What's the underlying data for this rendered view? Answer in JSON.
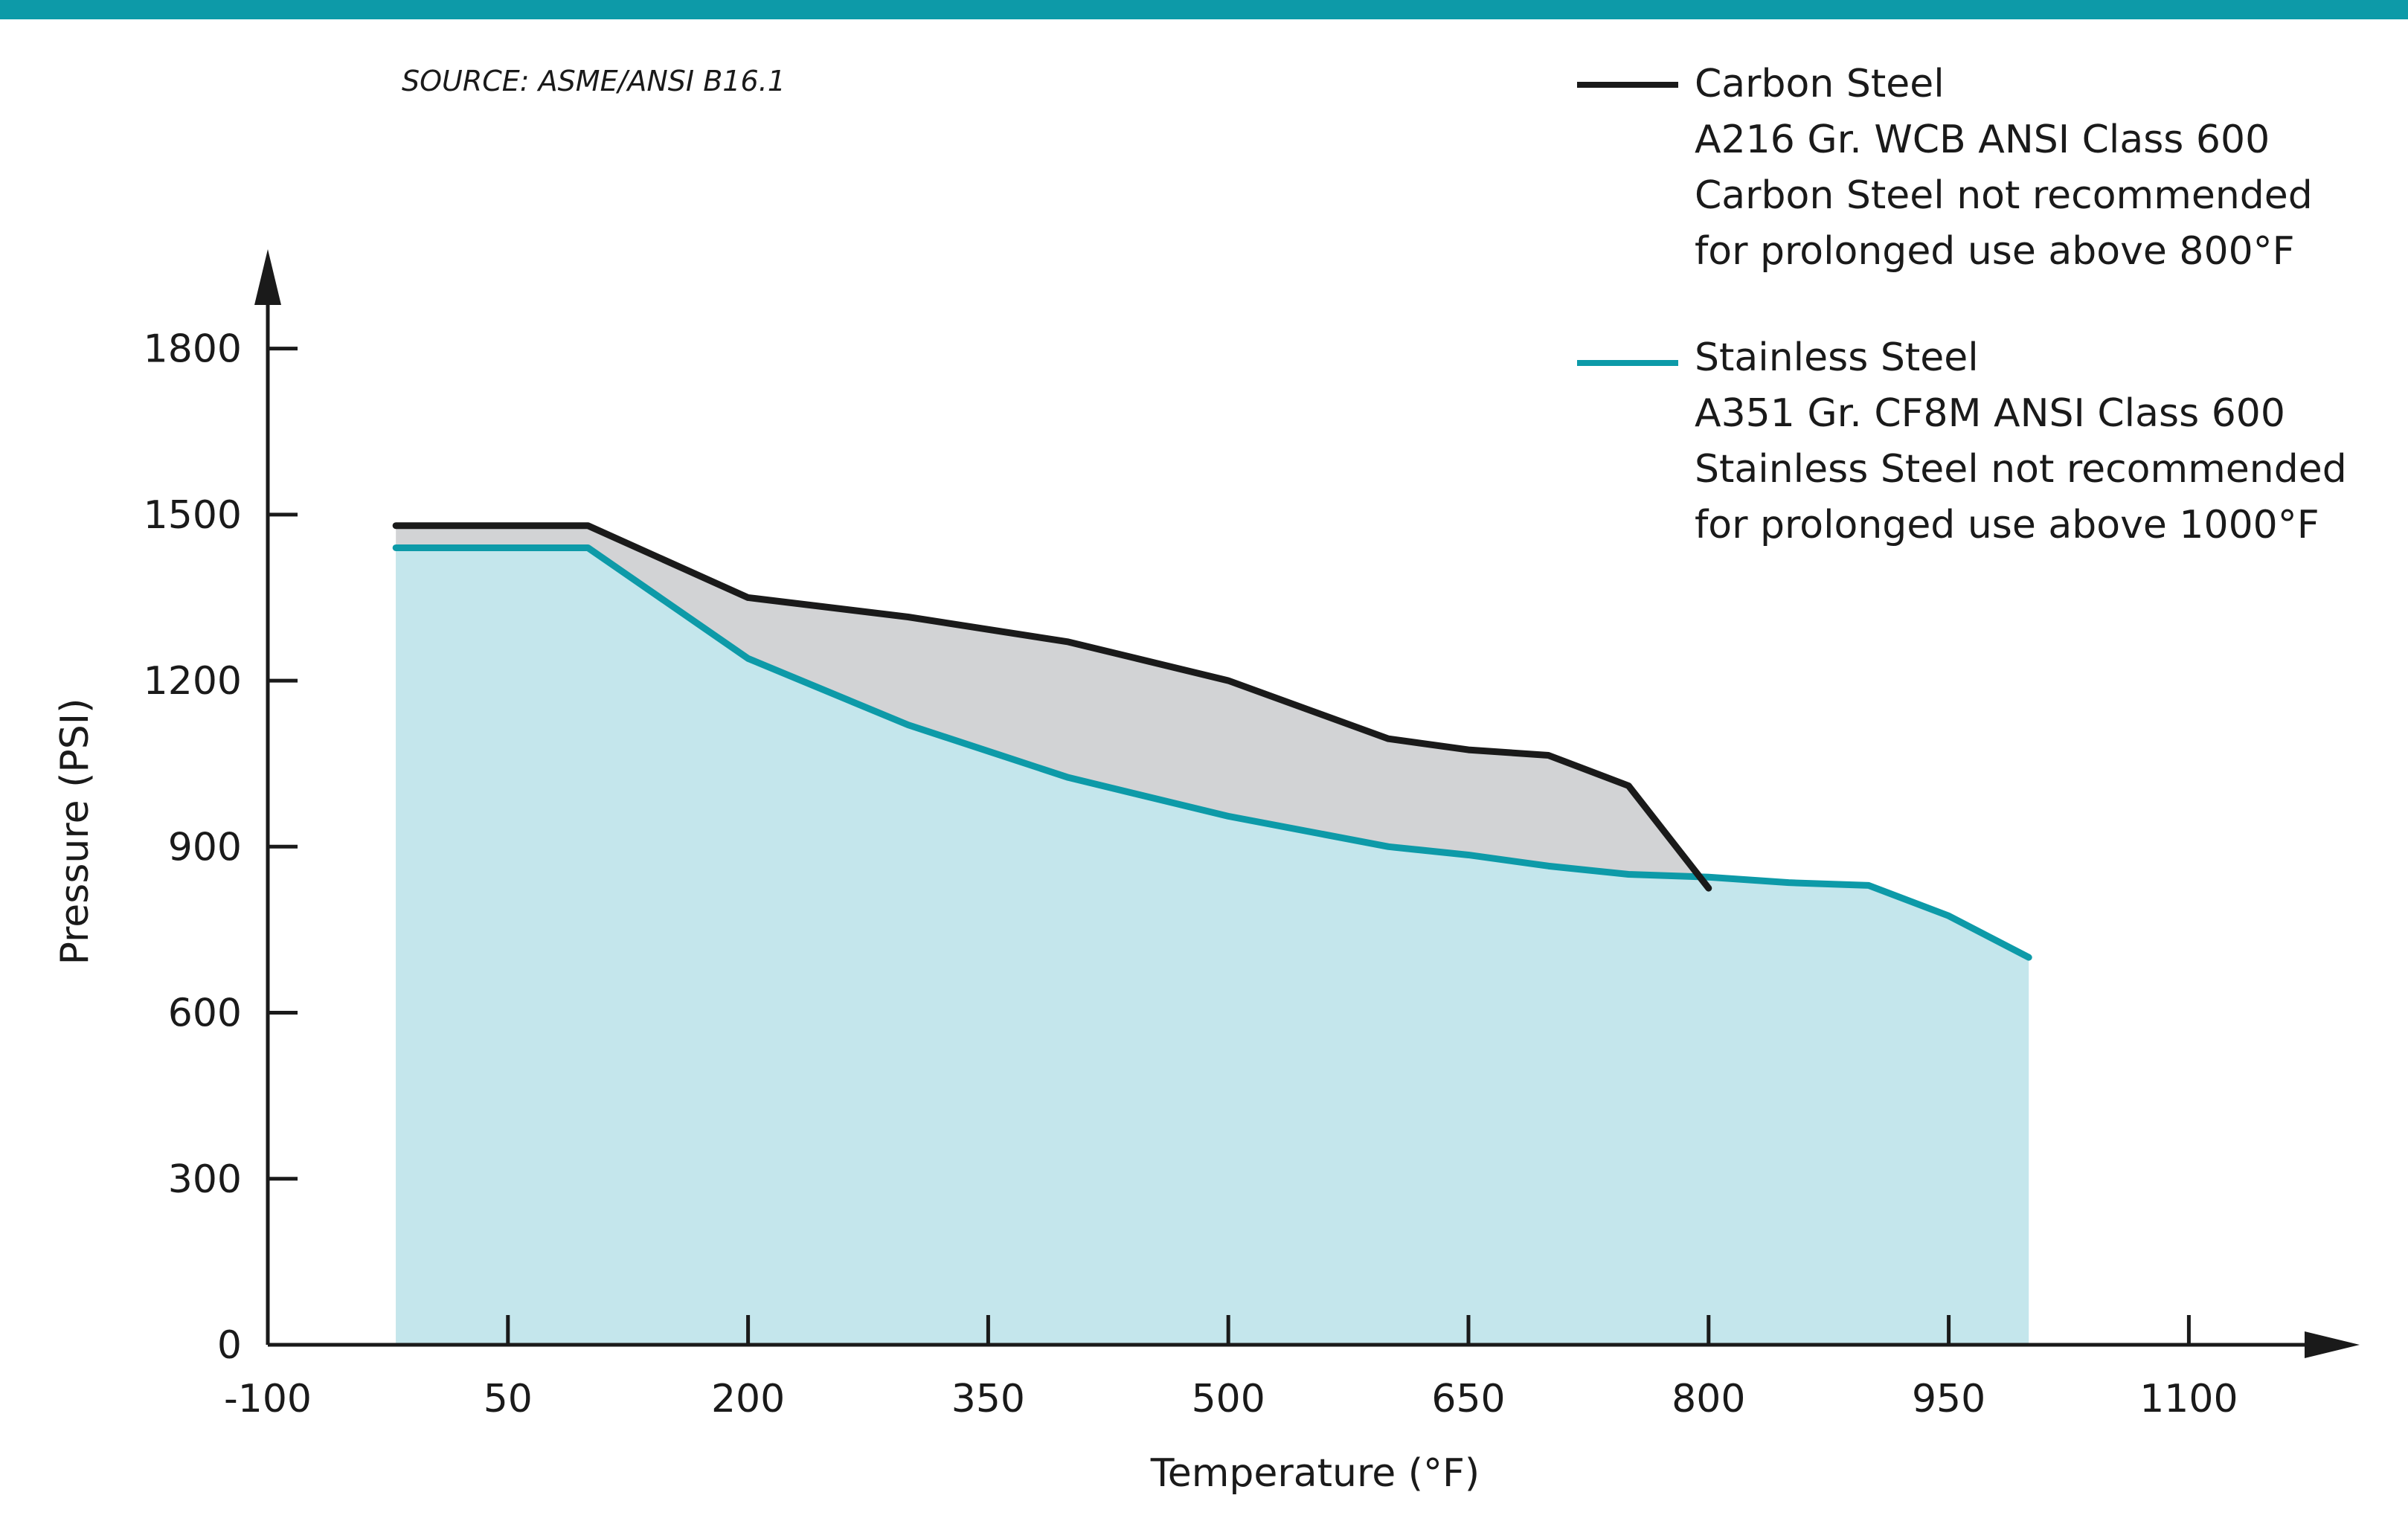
{
  "source_note": "SOURCE: ASME/ANSI B16.1",
  "colors": {
    "top_bar": "#0d9aa8",
    "carbon_line": "#1a1a1a",
    "stainless_line": "#0d9aa8",
    "carbon_fill": "#d2d3d5",
    "stainless_fill": "#c4e6ec",
    "axis": "#1a1a1a"
  },
  "legend": [
    {
      "series": "carbon",
      "lines": [
        "Carbon Steel",
        "A216 Gr. WCB ANSI Class 600",
        "Carbon Steel not recommended",
        "for prolonged use above 800°F"
      ]
    },
    {
      "series": "stainless",
      "lines": [
        "Stainless Steel",
        "A351 Gr. CF8M ANSI Class 600",
        "Stainless Steel not recommended",
        "for prolonged use above 1000°F"
      ]
    }
  ],
  "chart_data": {
    "type": "area",
    "xlabel": "Temperature (°F)",
    "ylabel": "Pressure (PSI)",
    "xlim": [
      -100,
      1150
    ],
    "ylim": [
      0,
      1950
    ],
    "x_ticks": [
      -100,
      50,
      200,
      350,
      500,
      650,
      800,
      950,
      1100
    ],
    "y_ticks": [
      0,
      300,
      600,
      900,
      1200,
      1500,
      1800
    ],
    "grid": false,
    "legend_position": "top-right",
    "series": [
      {
        "name": "Carbon Steel",
        "key": "carbon",
        "x": [
          -20,
          100,
          200,
          300,
          400,
          500,
          600,
          650,
          700,
          750,
          800
        ],
        "y": [
          1480,
          1480,
          1350,
          1315,
          1270,
          1200,
          1095,
          1075,
          1065,
          1010,
          825
        ]
      },
      {
        "name": "Stainless Steel",
        "key": "stainless",
        "x": [
          -20,
          100,
          200,
          300,
          400,
          500,
          600,
          650,
          700,
          750,
          800,
          850,
          900,
          950,
          1000
        ],
        "y": [
          1440,
          1440,
          1240,
          1120,
          1025,
          955,
          900,
          885,
          865,
          850,
          845,
          835,
          830,
          775,
          700
        ]
      }
    ]
  }
}
